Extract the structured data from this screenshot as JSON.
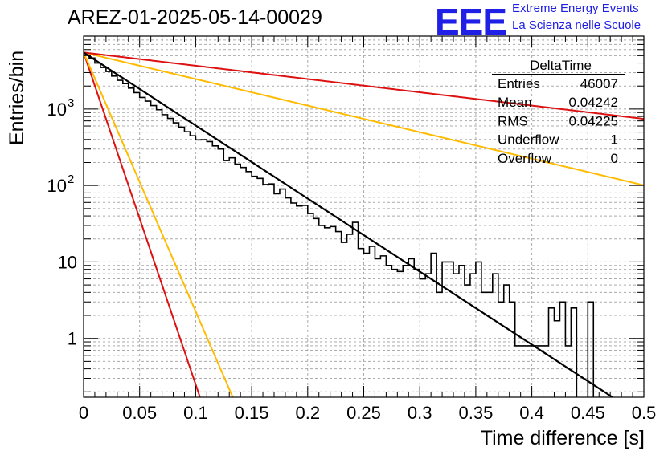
{
  "chart_data": {
    "type": "histogram",
    "title": "AREZ-01-2025-05-14-00029",
    "xlabel": "Time difference [s]",
    "ylabel": "Entries/bin",
    "xlim": [
      0,
      0.5
    ],
    "ylim": [
      0.17,
      9000
    ],
    "yscale": "log",
    "grid": true,
    "x_ticks": [
      "0",
      "0.05",
      "0.1",
      "0.15",
      "0.2",
      "0.25",
      "0.3",
      "0.35",
      "0.4",
      "0.45",
      "0.5"
    ],
    "y_ticks": [
      {
        "label": "1",
        "value": 1
      },
      {
        "label": "10",
        "value": 10
      },
      {
        "label": "10",
        "exp": "2",
        "value": 100
      },
      {
        "label": "10",
        "exp": "3",
        "value": 1000
      }
    ],
    "bin_width": 0.005,
    "histogram": [
      5200,
      4650,
      4000,
      3500,
      3100,
      2700,
      2380,
      2150,
      1880,
      1640,
      1420,
      1270,
      1110,
      980,
      845,
      755,
      660,
      580,
      505,
      448,
      395,
      398,
      375,
      330,
      300,
      212,
      230,
      190,
      172,
      152,
      132,
      124,
      103,
      105,
      78,
      90,
      69,
      59,
      54,
      55,
      43,
      37,
      30,
      28,
      29,
      25,
      18,
      23,
      33,
      15,
      13,
      16,
      11,
      12,
      9,
      8,
      7.5,
      9,
      11,
      8,
      6,
      7,
      13,
      4,
      10,
      10,
      7,
      9,
      5,
      7,
      10,
      4,
      4,
      7,
      3,
      5,
      3,
      0.8,
      0.8,
      0.8,
      0.8,
      0.8,
      0.8,
      2.5,
      1.7,
      3,
      0.8,
      2.5,
      0,
      0,
      3,
      0.15,
      0,
      0,
      0,
      0,
      0,
      0,
      0,
      0
    ],
    "series": [
      {
        "name": "fit",
        "color": "#000000",
        "a": 5500,
        "b": -22.0
      },
      {
        "name": "red-slow",
        "color": "#dd1111",
        "a": 5500,
        "b": -4.0
      },
      {
        "name": "orange-slow",
        "color": "#ffbb00",
        "a": 5500,
        "b": -8.0
      },
      {
        "name": "orange-fast",
        "color": "#ffbb00",
        "a": 5500,
        "b": -78.0
      },
      {
        "name": "red-fast",
        "color": "#dd1111",
        "a": 5500,
        "b": -100.0
      }
    ],
    "stats": {
      "name": "DeltaTime",
      "rows": [
        {
          "label": "Entries",
          "value": "46007"
        },
        {
          "label": "Mean",
          "value": "0.04242"
        },
        {
          "label": "RMS",
          "value": "0.04225"
        },
        {
          "label": "Underflow",
          "value": "1"
        },
        {
          "label": "Overflow",
          "value": "0"
        }
      ]
    }
  },
  "logo": {
    "mark": "EEE",
    "line1": "Extreme Energy Events",
    "line2": "La Scienza nelle Scuole"
  }
}
